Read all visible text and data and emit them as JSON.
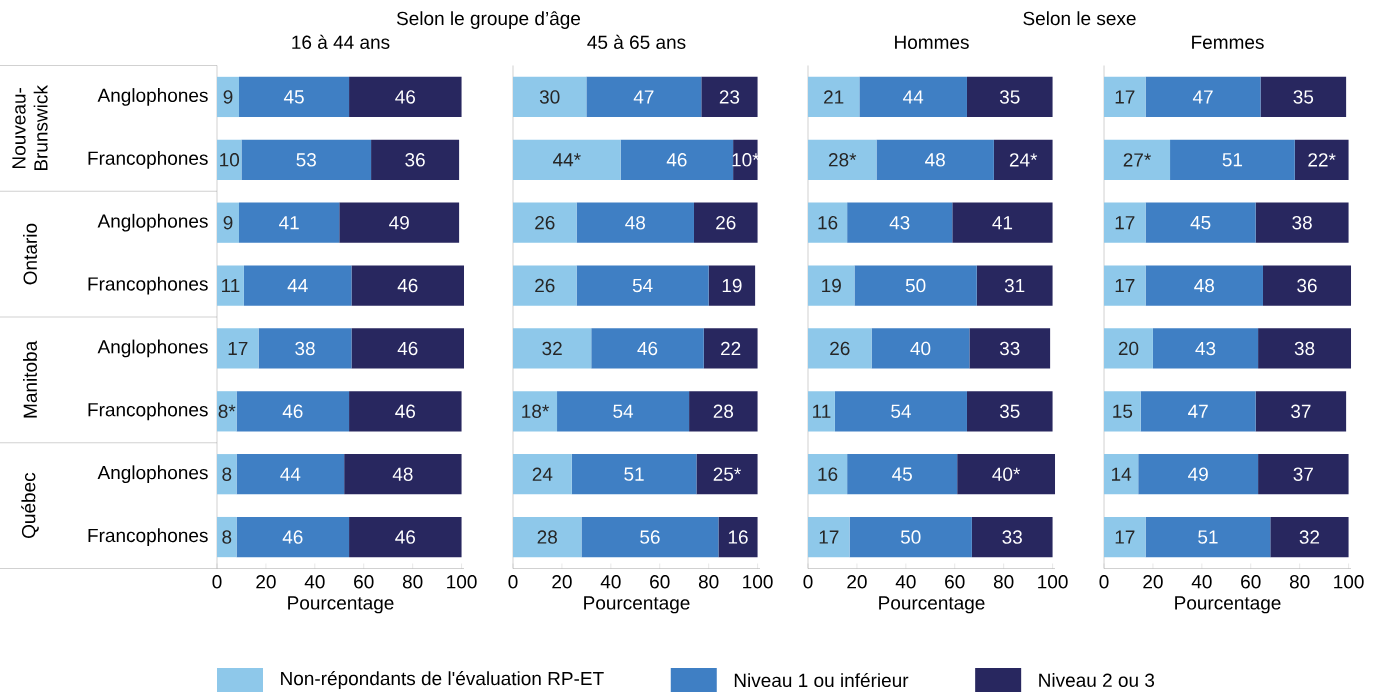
{
  "chart_data": [
    {
      "type": "bar",
      "orientation": "horizontal",
      "stacked": true,
      "title": "16 à 44 ans",
      "xlabel": "Pourcentage",
      "categories": [
        "Anglophones",
        "Francophones",
        "Anglophones",
        "Francophones",
        "Anglophones",
        "Francophones",
        "Anglophones",
        "Francophones"
      ],
      "series": [
        {
          "name": "Non-répondants de l'évaluation RP-ET",
          "color": "#8ec8ea",
          "values": [
            9,
            10,
            9,
            11,
            17,
            8,
            8,
            8
          ],
          "value_labels": [
            "9",
            "10",
            "9",
            "11",
            "17",
            "8*",
            "8",
            "8"
          ]
        },
        {
          "name": "Niveau 1 ou inférieur",
          "color": "#3f7fc4",
          "values": [
            45,
            53,
            41,
            44,
            38,
            46,
            44,
            46
          ],
          "value_labels": [
            "45",
            "53",
            "41",
            "44",
            "38",
            "46",
            "44",
            "46"
          ]
        },
        {
          "name": "Niveau 2 ou 3",
          "color": "#28275f",
          "values": [
            46,
            36,
            49,
            46,
            46,
            46,
            48,
            46
          ],
          "value_labels": [
            "46",
            "36",
            "49",
            "46",
            "46",
            "46",
            "48",
            "46"
          ]
        }
      ],
      "xlim": [
        0,
        101
      ],
      "xticks": [
        0,
        20,
        40,
        60,
        80,
        100
      ],
      "legend": "bottom",
      "annotations": [
        "Selon le groupe d’âge",
        "Nouveau-Brunswick",
        "Ontario",
        "Manitoba",
        "Québec"
      ]
    },
    {
      "type": "bar",
      "orientation": "horizontal",
      "stacked": true,
      "title": "45 à 65 ans",
      "xlabel": "Pourcentage",
      "categories": [
        null,
        null,
        null,
        null,
        null,
        null,
        null,
        null
      ],
      "series": [
        {
          "color": "#8ec8ea",
          "values": [
            30,
            44,
            26,
            26,
            32,
            18,
            24,
            28
          ],
          "value_labels": [
            "30",
            "44*",
            "26",
            "26",
            "32",
            "18*",
            "24",
            "28"
          ]
        },
        {
          "color": "#3f7fc4",
          "values": [
            47,
            46,
            48,
            54,
            46,
            54,
            51,
            56
          ],
          "value_labels": [
            "47",
            "46",
            "48",
            "54",
            "46",
            "54",
            "51",
            "56"
          ]
        },
        {
          "color": "#28275f",
          "values": [
            23,
            10,
            26,
            19,
            22,
            28,
            25,
            16
          ],
          "value_labels": [
            "23",
            "10*",
            "26",
            "19",
            "22",
            "28",
            "25*",
            "16"
          ]
        }
      ],
      "xlim": [
        0,
        101
      ],
      "xticks": [
        0,
        20,
        40,
        60,
        80,
        100
      ],
      "tick_labels": "x"
    },
    {
      "type": "bar",
      "orientation": "horizontal",
      "stacked": true,
      "title": "Hommes",
      "xlabel": "Pourcentage",
      "categories": [
        null,
        null,
        null,
        null,
        null,
        null,
        null,
        null
      ],
      "series": [
        {
          "color": "#8ec8ea",
          "values": [
            21,
            28,
            16,
            19,
            26,
            11,
            16,
            17
          ],
          "value_labels": [
            "21",
            "28*",
            "16",
            "19",
            "26",
            "11",
            "16",
            "17"
          ]
        },
        {
          "color": "#3f7fc4",
          "values": [
            44,
            48,
            43,
            50,
            40,
            54,
            45,
            50
          ],
          "value_labels": [
            "44",
            "48",
            "43",
            "50",
            "40",
            "54",
            "45",
            "50"
          ]
        },
        {
          "color": "#28275f",
          "values": [
            35,
            24,
            41,
            31,
            33,
            35,
            40,
            33
          ],
          "value_labels": [
            "35",
            "24*",
            "41",
            "31",
            "33",
            "35",
            "40*",
            "33"
          ]
        }
      ],
      "xlim": [
        0,
        101
      ],
      "xticks": [
        0,
        20,
        40,
        60,
        80,
        100
      ],
      "tick_labels": "x",
      "annotations": [
        "Selon le sexe"
      ]
    },
    {
      "type": "bar",
      "orientation": "horizontal",
      "stacked": true,
      "title": "Femmes",
      "xlabel": "Pourcentage",
      "categories": [
        null,
        null,
        null,
        null,
        null,
        null,
        null,
        null
      ],
      "series": [
        {
          "color": "#8ec8ea",
          "values": [
            17,
            27,
            17,
            17,
            20,
            15,
            14,
            17
          ],
          "value_labels": [
            "17",
            "27*",
            "17",
            "17",
            "20",
            "15",
            "14",
            "17"
          ]
        },
        {
          "color": "#3f7fc4",
          "values": [
            47,
            51,
            45,
            48,
            43,
            47,
            49,
            51
          ],
          "value_labels": [
            "47",
            "51",
            "45",
            "48",
            "43",
            "47",
            "49",
            "51"
          ]
        },
        {
          "color": "#28275f",
          "values": [
            35,
            22,
            38,
            36,
            38,
            37,
            37,
            32
          ],
          "value_labels": [
            "35",
            "22*",
            "38",
            "36",
            "38",
            "37",
            "37",
            "32"
          ]
        }
      ],
      "xlim": [
        0,
        101
      ],
      "xticks": [
        0,
        20,
        40,
        60,
        80,
        100
      ],
      "tick_labels": "x"
    }
  ]
}
